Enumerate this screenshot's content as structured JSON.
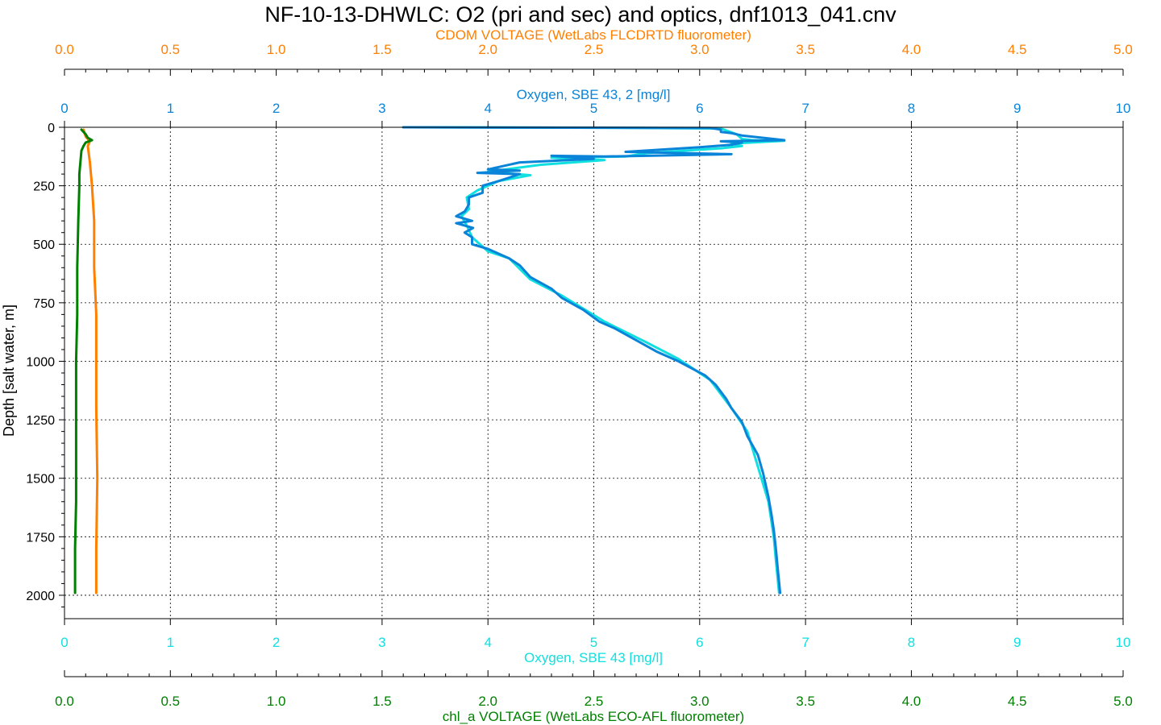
{
  "chart_data": {
    "type": "line",
    "title": "NF-10-13-DHWLC: O2 (pri and sec) and optics, dnf1013_041.cnv",
    "ylabel": "Depth [salt water, m]",
    "ylim": [
      0,
      2100
    ],
    "y_ticks": [
      0,
      250,
      500,
      750,
      1000,
      1250,
      1500,
      1750,
      2000
    ],
    "grid": true,
    "axes": {
      "cdom": {
        "label": "CDOM VOLTAGE (WetLabs FLCDRTD fluorometer)",
        "range": [
          0,
          5
        ],
        "ticks": [
          "0.0",
          "0.5",
          "1.0",
          "1.5",
          "2.0",
          "2.5",
          "3.0",
          "3.5",
          "4.0",
          "4.5",
          "5.0"
        ],
        "color": "#ff8000"
      },
      "oxygen2": {
        "label": "Oxygen, SBE 43, 2 [mg/l]",
        "range": [
          0,
          10
        ],
        "ticks": [
          "0",
          "1",
          "2",
          "3",
          "4",
          "5",
          "6",
          "7",
          "8",
          "9",
          "10"
        ],
        "color": "#0a84d8"
      },
      "oxygen": {
        "label": "Oxygen, SBE 43 [mg/l]",
        "range": [
          0,
          10
        ],
        "ticks": [
          "0",
          "1",
          "2",
          "3",
          "4",
          "5",
          "6",
          "7",
          "8",
          "9",
          "10"
        ],
        "color": "#10e0e0"
      },
      "chla": {
        "label": "chl_a VOLTAGE (WetLabs ECO-AFL fluorometer)",
        "range": [
          0,
          5
        ],
        "ticks": [
          "0.0",
          "0.5",
          "1.0",
          "1.5",
          "2.0",
          "2.5",
          "3.0",
          "3.5",
          "4.0",
          "4.5",
          "5.0"
        ],
        "color": "#008000"
      }
    },
    "series": [
      {
        "axis": "oxygen",
        "color": "#10e0e0",
        "points": [
          [
            3.2,
            0
          ],
          [
            5.2,
            2
          ],
          [
            6.2,
            5
          ],
          [
            6.35,
            30
          ],
          [
            6.4,
            50
          ],
          [
            6.5,
            55
          ],
          [
            6.8,
            58
          ],
          [
            6.3,
            70
          ],
          [
            6.4,
            80
          ],
          [
            6.2,
            90
          ],
          [
            5.5,
            110
          ],
          [
            5.3,
            125
          ],
          [
            4.6,
            130
          ],
          [
            5.1,
            140
          ],
          [
            4.5,
            160
          ],
          [
            4.0,
            190
          ],
          [
            4.4,
            205
          ],
          [
            4.1,
            230
          ],
          [
            3.9,
            270
          ],
          [
            3.8,
            300
          ],
          [
            3.82,
            350
          ],
          [
            3.75,
            380
          ],
          [
            3.8,
            420
          ],
          [
            3.85,
            470
          ],
          [
            4.0,
            530
          ],
          [
            4.2,
            560
          ],
          [
            4.4,
            650
          ],
          [
            4.7,
            720
          ],
          [
            5.1,
            830
          ],
          [
            5.5,
            920
          ],
          [
            5.8,
            990
          ],
          [
            6.1,
            1080
          ],
          [
            6.3,
            1200
          ],
          [
            6.45,
            1300
          ],
          [
            6.55,
            1450
          ],
          [
            6.65,
            1600
          ],
          [
            6.7,
            1750
          ],
          [
            6.72,
            1850
          ],
          [
            6.75,
            1990
          ]
        ]
      },
      {
        "axis": "oxygen2",
        "color": "#0a84d8",
        "points": [
          [
            3.2,
            0
          ],
          [
            6.1,
            3
          ],
          [
            6.2,
            10
          ],
          [
            6.2,
            20
          ],
          [
            6.3,
            25
          ],
          [
            6.4,
            35
          ],
          [
            6.6,
            45
          ],
          [
            6.8,
            55
          ],
          [
            6.2,
            60
          ],
          [
            6.4,
            65
          ],
          [
            6.3,
            75
          ],
          [
            6.0,
            85
          ],
          [
            5.3,
            105
          ],
          [
            6.3,
            115
          ],
          [
            5.1,
            125
          ],
          [
            4.6,
            122
          ],
          [
            5.0,
            135
          ],
          [
            4.3,
            150
          ],
          [
            4.0,
            180
          ],
          [
            4.3,
            185
          ],
          [
            3.9,
            195
          ],
          [
            4.3,
            200
          ],
          [
            4.2,
            215
          ],
          [
            4.1,
            230
          ],
          [
            3.95,
            250
          ],
          [
            3.95,
            280
          ],
          [
            3.82,
            300
          ],
          [
            3.82,
            330
          ],
          [
            3.78,
            360
          ],
          [
            3.7,
            380
          ],
          [
            3.85,
            400
          ],
          [
            3.7,
            410
          ],
          [
            3.86,
            430
          ],
          [
            3.78,
            450
          ],
          [
            3.85,
            470
          ],
          [
            3.85,
            500
          ],
          [
            4.0,
            520
          ],
          [
            4.2,
            560
          ],
          [
            4.3,
            590
          ],
          [
            4.4,
            640
          ],
          [
            4.6,
            690
          ],
          [
            4.7,
            730
          ],
          [
            4.9,
            780
          ],
          [
            5.05,
            830
          ],
          [
            5.2,
            860
          ],
          [
            5.4,
            910
          ],
          [
            5.6,
            960
          ],
          [
            5.8,
            1000
          ],
          [
            6.05,
            1060
          ],
          [
            6.15,
            1100
          ],
          [
            6.25,
            1160
          ],
          [
            6.3,
            1200
          ],
          [
            6.4,
            1260
          ],
          [
            6.45,
            1320
          ],
          [
            6.55,
            1400
          ],
          [
            6.6,
            1480
          ],
          [
            6.65,
            1580
          ],
          [
            6.68,
            1660
          ],
          [
            6.7,
            1720
          ],
          [
            6.72,
            1800
          ],
          [
            6.74,
            1900
          ],
          [
            6.76,
            1990
          ]
        ]
      },
      {
        "axis": "cdom",
        "color": "#ff8000",
        "points": [
          [
            0.09,
            10
          ],
          [
            0.1,
            40
          ],
          [
            0.12,
            60
          ],
          [
            0.11,
            80
          ],
          [
            0.12,
            150
          ],
          [
            0.13,
            250
          ],
          [
            0.14,
            400
          ],
          [
            0.14,
            600
          ],
          [
            0.15,
            800
          ],
          [
            0.15,
            1000
          ],
          [
            0.15,
            1200
          ],
          [
            0.155,
            1500
          ],
          [
            0.15,
            1800
          ],
          [
            0.15,
            1990
          ]
        ]
      },
      {
        "axis": "chla",
        "color": "#008000",
        "points": [
          [
            0.08,
            10
          ],
          [
            0.1,
            30
          ],
          [
            0.11,
            45
          ],
          [
            0.13,
            55
          ],
          [
            0.1,
            65
          ],
          [
            0.09,
            80
          ],
          [
            0.08,
            100
          ],
          [
            0.075,
            150
          ],
          [
            0.07,
            200
          ],
          [
            0.07,
            250
          ],
          [
            0.065,
            400
          ],
          [
            0.06,
            600
          ],
          [
            0.06,
            800
          ],
          [
            0.055,
            1000
          ],
          [
            0.055,
            1300
          ],
          [
            0.055,
            1600
          ],
          [
            0.05,
            1800
          ],
          [
            0.05,
            1990
          ]
        ]
      }
    ]
  }
}
